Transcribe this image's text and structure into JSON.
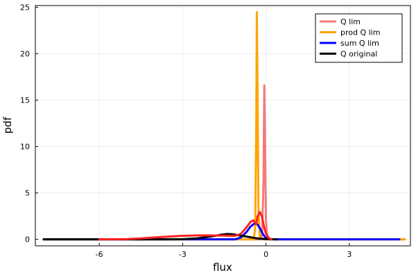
{
  "chart_data": {
    "type": "line",
    "xlabel": "flux",
    "ylabel": "pdf",
    "xlim": [
      -8.3,
      5.2
    ],
    "ylim": [
      -0.7,
      25.2
    ],
    "xticks": [
      -6,
      -3,
      0,
      3
    ],
    "xtick_labels": [
      "-6",
      "-3",
      "0",
      "3"
    ],
    "yticks": [
      0,
      5,
      10,
      15,
      20,
      25
    ],
    "ytick_labels": [
      "0",
      "5",
      "10",
      "15",
      "20",
      "25"
    ],
    "grid": true,
    "legend_position": "top-right",
    "series": [
      {
        "name": "Q lim",
        "color": "#f47a7a",
        "role": "legend",
        "points": [
          [
            -8.0,
            0
          ],
          [
            -0.2,
            0
          ],
          [
            -0.14,
            0.5
          ],
          [
            -0.09,
            6
          ],
          [
            -0.06,
            16.6
          ],
          [
            -0.03,
            10
          ],
          [
            0.0,
            2
          ],
          [
            0.05,
            0.2
          ],
          [
            0.15,
            0
          ],
          [
            5.0,
            0
          ]
        ]
      },
      {
        "name": "prod Q lim",
        "color": "#ffa500",
        "role": "legend",
        "points": [
          [
            -8.0,
            0
          ],
          [
            -0.45,
            0
          ],
          [
            -0.39,
            1.0
          ],
          [
            -0.35,
            12
          ],
          [
            -0.33,
            24.5
          ],
          [
            -0.3,
            15
          ],
          [
            -0.27,
            3
          ],
          [
            -0.22,
            0.3
          ],
          [
            -0.15,
            0
          ],
          [
            5.0,
            0
          ]
        ]
      },
      {
        "name": "sum Q lim",
        "color": "#0000ff",
        "role": "legend",
        "points": [
          [
            -8.0,
            0
          ],
          [
            -1.1,
            0
          ],
          [
            -0.9,
            0.2
          ],
          [
            -0.7,
            0.8
          ],
          [
            -0.55,
            1.4
          ],
          [
            -0.4,
            1.75
          ],
          [
            -0.3,
            1.6
          ],
          [
            -0.2,
            1.1
          ],
          [
            -0.1,
            0.5
          ],
          [
            0.0,
            0.15
          ],
          [
            0.15,
            0
          ],
          [
            4.8,
            0
          ]
        ]
      },
      {
        "name": "Q original",
        "color": "#000000",
        "role": "legend",
        "points": [
          [
            -8.0,
            0
          ],
          [
            -3.5,
            0
          ],
          [
            -3.0,
            0.02
          ],
          [
            -2.5,
            0.1
          ],
          [
            -2.0,
            0.3
          ],
          [
            -1.6,
            0.5
          ],
          [
            -1.4,
            0.58
          ],
          [
            -1.2,
            0.55
          ],
          [
            -0.9,
            0.4
          ],
          [
            -0.6,
            0.25
          ],
          [
            -0.3,
            0.1
          ],
          [
            0.0,
            0.03
          ],
          [
            0.4,
            0
          ]
        ]
      },
      {
        "color": "#ff2020",
        "points": [
          [
            -6.0,
            0
          ],
          [
            -5.0,
            0.03
          ],
          [
            -4.5,
            0.1
          ],
          [
            -4.0,
            0.2
          ],
          [
            -3.5,
            0.3
          ],
          [
            -3.0,
            0.38
          ],
          [
            -2.5,
            0.42
          ],
          [
            -2.0,
            0.43
          ],
          [
            -1.5,
            0.4
          ],
          [
            -1.1,
            0.38
          ],
          [
            -0.9,
            0.6
          ],
          [
            -0.7,
            1.3
          ],
          [
            -0.55,
            1.9
          ],
          [
            -0.45,
            2.05
          ],
          [
            -0.35,
            1.6
          ],
          [
            -0.3,
            2.5
          ],
          [
            -0.22,
            2.95
          ],
          [
            -0.15,
            2.5
          ],
          [
            -0.08,
            1.5
          ],
          [
            0.0,
            0.6
          ],
          [
            0.1,
            0.15
          ],
          [
            0.2,
            0
          ]
        ]
      }
    ]
  }
}
